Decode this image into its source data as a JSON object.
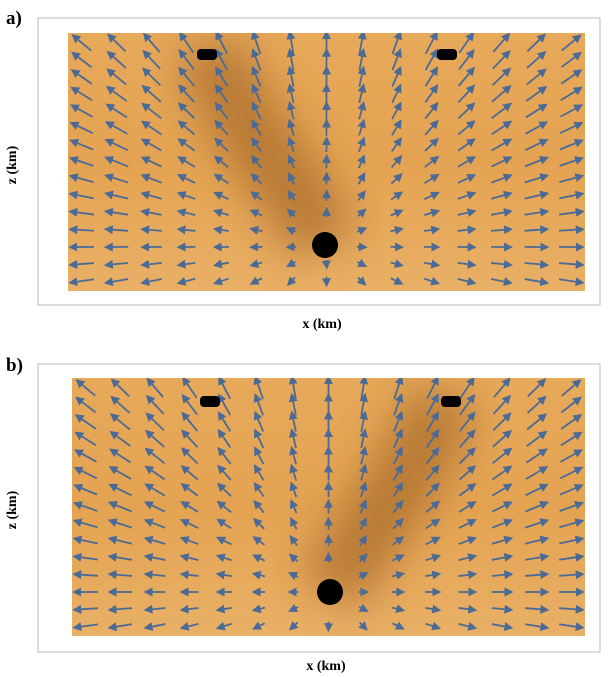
{
  "panels": [
    {
      "label": "a)",
      "y_label": "z (km)",
      "x_label": "x (km)"
    },
    {
      "label": "b)",
      "y_label": "z (km)",
      "x_label": "x (km)"
    }
  ]
}
